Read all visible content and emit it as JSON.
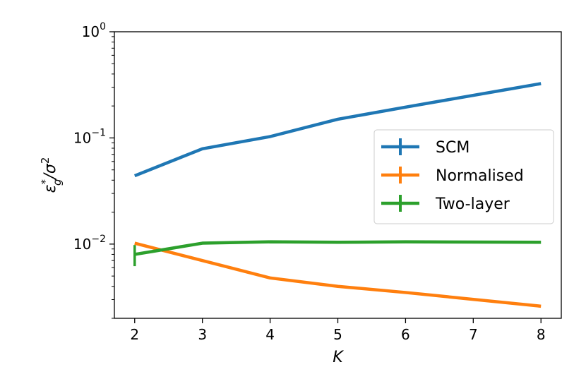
{
  "chart_data": {
    "type": "line",
    "xlabel": "K",
    "ylabel": "ε*_g / σ²",
    "ylabel_parts": {
      "main": "ε",
      "sup": "*",
      "sub": "g",
      "slash": "/σ",
      "sup2": "2"
    },
    "yscale": "log",
    "xlim": [
      1.7,
      8.3
    ],
    "ylim": [
      0.002,
      1.0
    ],
    "x_ticks": [
      2,
      3,
      4,
      5,
      6,
      7,
      8
    ],
    "y_ticks": [
      {
        "value": 0.01,
        "base": "10",
        "exp": "−2"
      },
      {
        "value": 0.1,
        "base": "10",
        "exp": "−1"
      },
      {
        "value": 1.0,
        "base": "10",
        "exp": "0"
      }
    ],
    "grid": false,
    "legend_position": "center-right",
    "series": [
      {
        "name": "SCM",
        "color": "#1f77b4",
        "x": [
          2,
          3,
          4,
          5,
          6,
          8
        ],
        "y": [
          0.044,
          0.079,
          0.103,
          0.15,
          0.195,
          0.325
        ],
        "yerr": [
          0.0,
          0.0,
          0.0,
          0.004,
          0.002,
          0.0
        ]
      },
      {
        "name": "Normalised",
        "color": "#ff7f0e",
        "x": [
          2,
          3,
          4,
          5,
          6,
          8
        ],
        "y": [
          0.0102,
          0.007,
          0.0048,
          0.004,
          0.0035,
          0.0026
        ],
        "yerr": [
          0.0,
          0.0,
          0.0,
          8e-05,
          7e-05,
          0.0
        ]
      },
      {
        "name": "Two-layer",
        "color": "#2ca02c",
        "x": [
          2,
          3,
          4,
          5,
          6,
          8
        ],
        "y": [
          0.008,
          0.0102,
          0.0105,
          0.0104,
          0.0105,
          0.0104
        ],
        "yerr": [
          0.0018,
          0.0,
          0.0,
          0.0,
          0.0,
          0.0
        ]
      }
    ]
  }
}
